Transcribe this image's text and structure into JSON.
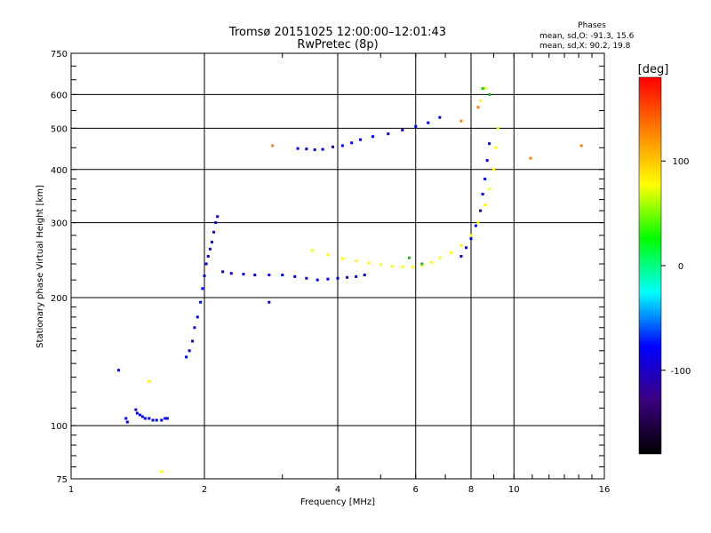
{
  "chart_data": {
    "type": "scatter",
    "title": "Tromsø 20151025 12:00:00–12:01:43",
    "subtitle": "RwPretec (8p)",
    "xlabel": "Frequency [MHz]",
    "ylabel": "Stationary phase Virtual Height [km]",
    "x_scale": "log",
    "y_scale": "log",
    "xlim": [
      1,
      16
    ],
    "ylim": [
      75,
      750
    ],
    "x_ticks": [
      1,
      2,
      4,
      6,
      8,
      10,
      16
    ],
    "y_ticks": [
      75,
      100,
      200,
      300,
      400,
      500,
      600,
      750
    ],
    "grid": true,
    "legend": {
      "title": "Phases",
      "lines": [
        "mean, sd,O: -91.3, 15.6",
        "mean, sd,X:  90.2, 19.8"
      ],
      "placement": "top-right"
    },
    "colorbar": {
      "label": "[deg]",
      "range": [
        -180,
        180
      ],
      "ticks": [
        100,
        0,
        -100
      ],
      "colors": [
        "#000000",
        "#3b0080",
        "#0000ff",
        "#00ffff",
        "#00ff00",
        "#ffff00",
        "#ff8000",
        "#ff0000"
      ]
    },
    "series": [
      {
        "description_color": "#0000ff",
        "points": [
          [
            1.28,
            135
          ],
          [
            1.33,
            104
          ],
          [
            1.34,
            102
          ],
          [
            1.4,
            109
          ],
          [
            1.41,
            107
          ],
          [
            1.43,
            106
          ],
          [
            1.45,
            105
          ],
          [
            1.47,
            104
          ],
          [
            1.5,
            104
          ],
          [
            1.53,
            103
          ],
          [
            1.56,
            103
          ],
          [
            1.6,
            103
          ],
          [
            1.63,
            104
          ],
          [
            1.65,
            104
          ],
          [
            1.82,
            145
          ],
          [
            1.85,
            150
          ],
          [
            1.88,
            158
          ],
          [
            1.9,
            170
          ],
          [
            1.93,
            180
          ],
          [
            1.96,
            195
          ],
          [
            1.98,
            210
          ],
          [
            2.0,
            225
          ],
          [
            2.02,
            240
          ],
          [
            2.04,
            250
          ],
          [
            2.06,
            260
          ],
          [
            2.08,
            270
          ],
          [
            2.1,
            285
          ],
          [
            2.12,
            300
          ],
          [
            2.14,
            310
          ],
          [
            2.2,
            230
          ],
          [
            2.3,
            228
          ],
          [
            2.45,
            227
          ],
          [
            2.6,
            226
          ],
          [
            2.8,
            226
          ],
          [
            3.0,
            226
          ],
          [
            3.2,
            224
          ],
          [
            3.4,
            222
          ],
          [
            3.6,
            220
          ],
          [
            3.8,
            221
          ],
          [
            4.0,
            222
          ],
          [
            4.2,
            223
          ],
          [
            4.4,
            224
          ],
          [
            4.6,
            226
          ],
          [
            3.25,
            448
          ],
          [
            3.4,
            447
          ],
          [
            3.55,
            445
          ],
          [
            3.7,
            446
          ],
          [
            3.9,
            452
          ],
          [
            4.1,
            455
          ],
          [
            4.3,
            462
          ],
          [
            4.5,
            470
          ],
          [
            4.8,
            478
          ],
          [
            5.2,
            485
          ],
          [
            5.6,
            495
          ],
          [
            6.0,
            505
          ],
          [
            6.4,
            515
          ],
          [
            6.8,
            530
          ],
          [
            7.6,
            250
          ],
          [
            7.8,
            262
          ],
          [
            8.0,
            275
          ],
          [
            8.2,
            295
          ],
          [
            8.4,
            320
          ],
          [
            8.5,
            350
          ],
          [
            8.6,
            380
          ],
          [
            8.7,
            420
          ],
          [
            8.8,
            460
          ],
          [
            2.8,
            195
          ]
        ]
      },
      {
        "description_color": "#ffff00",
        "points": [
          [
            3.5,
            258
          ],
          [
            3.8,
            252
          ],
          [
            4.1,
            247
          ],
          [
            4.4,
            244
          ],
          [
            4.7,
            241
          ],
          [
            5.0,
            239
          ],
          [
            5.3,
            237
          ],
          [
            5.6,
            236
          ],
          [
            5.9,
            236
          ],
          [
            6.2,
            238
          ],
          [
            6.5,
            242
          ],
          [
            6.8,
            248
          ],
          [
            7.2,
            255
          ],
          [
            7.6,
            265
          ],
          [
            8.0,
            280
          ],
          [
            8.3,
            300
          ],
          [
            8.6,
            330
          ],
          [
            8.8,
            360
          ],
          [
            9.0,
            400
          ],
          [
            9.1,
            450
          ],
          [
            9.2,
            500
          ],
          [
            8.4,
            580
          ],
          [
            8.6,
            620
          ],
          [
            1.5,
            127
          ],
          [
            1.6,
            78
          ]
        ]
      },
      {
        "description_color": "#ff8000",
        "points": [
          [
            2.85,
            455
          ],
          [
            10.9,
            425
          ],
          [
            14.2,
            455
          ],
          [
            7.6,
            520
          ],
          [
            8.3,
            560
          ]
        ]
      },
      {
        "description_color": "#00cc00",
        "points": [
          [
            8.8,
            600
          ],
          [
            8.5,
            620
          ],
          [
            6.2,
            240
          ],
          [
            5.8,
            248
          ]
        ]
      }
    ]
  }
}
